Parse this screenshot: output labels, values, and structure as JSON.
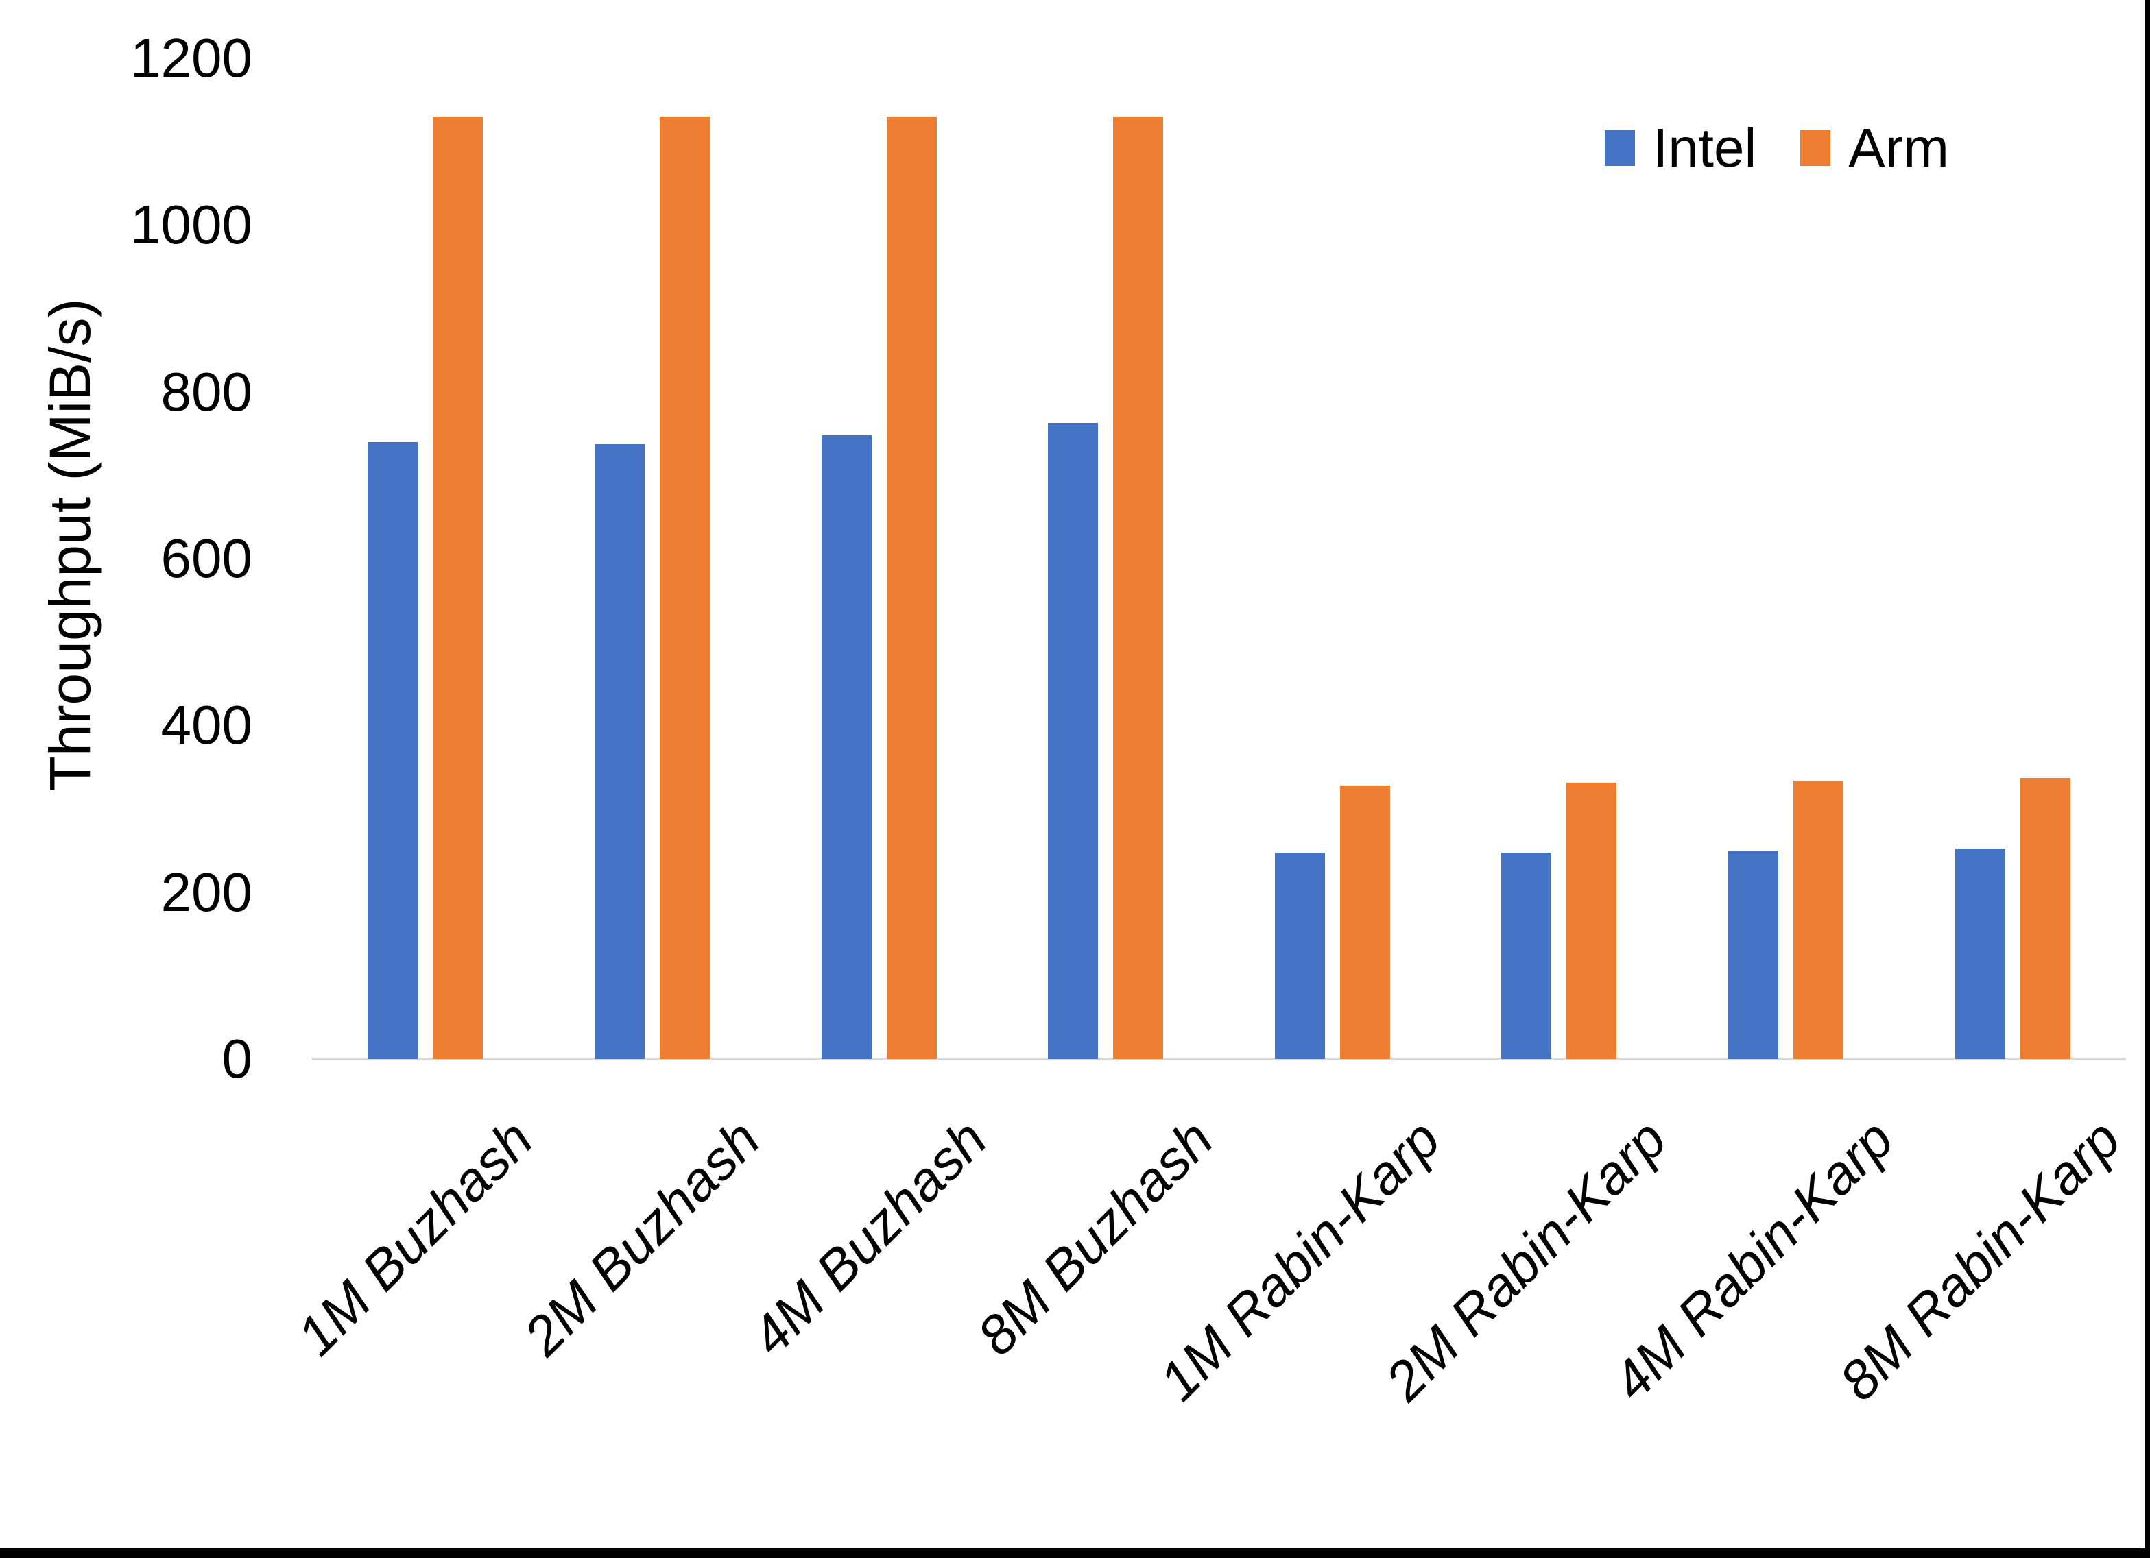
{
  "chart_data": {
    "type": "bar",
    "title": "",
    "categories": [
      "1M Buzhash",
      "2M Buzhash",
      "4M Buzhash",
      "8M Buzhash",
      "1M Rabin-Karp",
      "2M Rabin-Karp",
      "4M Rabin-Karp",
      "8M Rabin-Karp"
    ],
    "series": [
      {
        "name": "Intel",
        "color": "#4472C4",
        "values": [
          740,
          737,
          748,
          763,
          247,
          247,
          250,
          252
        ]
      },
      {
        "name": "Arm",
        "color": "#ED7D31",
        "values": [
          1130,
          1130,
          1130,
          1130,
          328,
          331,
          334,
          337
        ]
      }
    ],
    "xlabel": "",
    "ylabel": "Throughput (MiB/s)",
    "yticks": [
      0,
      200,
      400,
      600,
      800,
      1000,
      1200
    ],
    "ylim": [
      0,
      1200
    ],
    "grid": false,
    "legend_position": "top-right",
    "axis_line_color": "#D9D9D9",
    "text_color": "#000000",
    "x_tick_style": "italic, rotated 45deg",
    "background_color": "#FFFFFF",
    "border": {
      "bottom_bar_color": "#000000",
      "right_bar_color": "#000000"
    }
  }
}
